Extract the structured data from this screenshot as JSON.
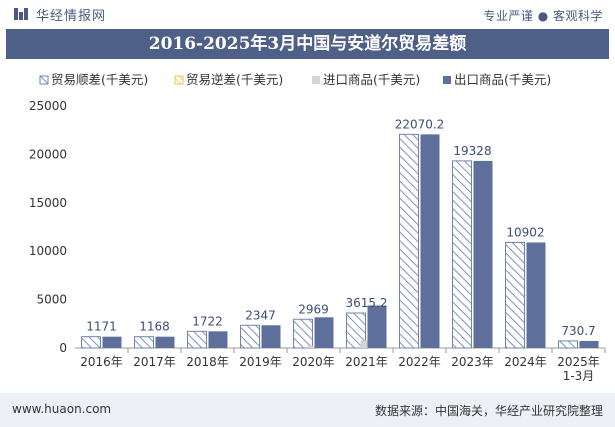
{
  "header": {
    "brand": "华经情报网",
    "tagline": "专业严谨 ● 客观科学"
  },
  "footer": {
    "site": "www.huaon.com",
    "source": "数据来源：中国海关，华经产业研究院整理"
  },
  "colors": {
    "surplus": "#6f84b0",
    "deficit": "#e8c44a",
    "import": "#d4d4d4",
    "export": "#5e6f9b",
    "title_bg": "#4e5f88",
    "label": "#3c4d78"
  },
  "chart_data": {
    "type": "bar",
    "title": "2016-2025年3月中国与安道尔贸易差额",
    "categories": [
      "2016年",
      "2017年",
      "2018年",
      "2019年",
      "2020年",
      "2021年",
      "2022年",
      "2023年",
      "2024年",
      "2025年 1-3月"
    ],
    "ylim": [
      0,
      25000
    ],
    "yticks": [
      0,
      5000,
      10000,
      15000,
      20000,
      25000
    ],
    "grid": false,
    "legend_position": "top",
    "series": [
      {
        "name": "贸易顺差(千美元)",
        "values": [
          1171,
          1168,
          1722,
          2347,
          2969,
          3615.2,
          22070.2,
          19328,
          10902,
          730.7
        ],
        "style": "hatched"
      },
      {
        "name": "贸易逆差(千美元)",
        "values": [
          0,
          0,
          0,
          0,
          0,
          0,
          0,
          0,
          0,
          0
        ],
        "style": "hatched"
      },
      {
        "name": "进口商品(千美元)",
        "values": [
          0,
          0,
          0,
          0,
          201,
          770,
          0,
          0,
          0,
          0
        ],
        "style": "solid"
      },
      {
        "name": "出口商品(千美元)",
        "values": [
          1171,
          1168,
          1722,
          2347,
          3170,
          4385,
          22070.2,
          19328,
          10902,
          730.7
        ],
        "style": "solid"
      }
    ],
    "data_labels": [
      "1171",
      "1168",
      "1722",
      "2347",
      "2969",
      "3615.2",
      "22070.2",
      "19328",
      "10902",
      "730.7"
    ]
  }
}
